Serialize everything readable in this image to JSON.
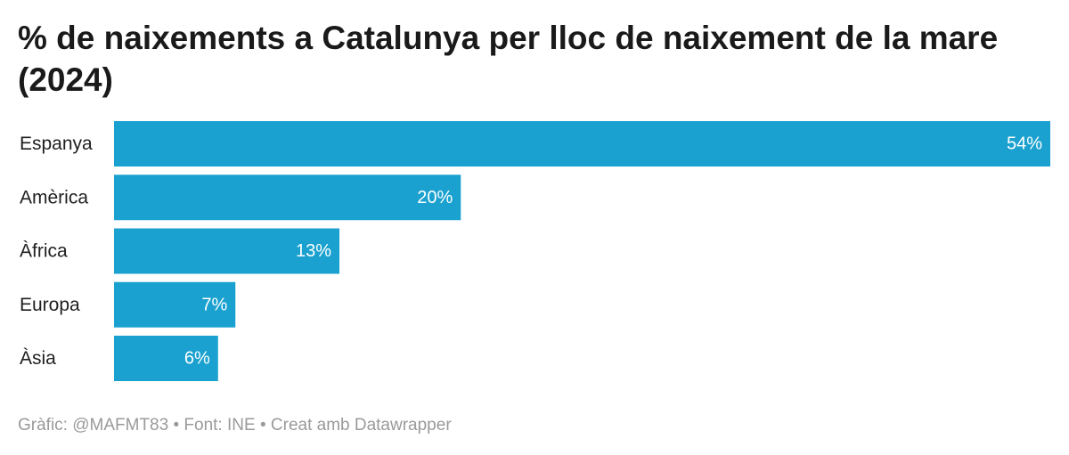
{
  "title": "% de naixements a Catalunya per lloc de naixement de la mare (2024)",
  "footer": {
    "credit": "Gràfic: @MAFMT83",
    "separator": "•",
    "source": "Font: INE",
    "tool": "Creat amb Datawrapper"
  },
  "colors": {
    "bar": "#1aa1cf",
    "value_label": "#ffffff"
  },
  "chart_data": {
    "type": "bar",
    "orientation": "horizontal",
    "title": "% de naixements a Catalunya per lloc de naixement de la mare (2024)",
    "categories": [
      "Espanya",
      "Amèrica",
      "Àfrica",
      "Europa",
      "Àsia"
    ],
    "values": [
      54,
      20,
      13,
      7,
      6
    ],
    "value_labels": [
      "54%",
      "20%",
      "13%",
      "7%",
      "6%"
    ],
    "unit": "%",
    "xlim": [
      0,
      54
    ],
    "xlabel": "",
    "ylabel": "",
    "grid": false,
    "legend": "none"
  }
}
